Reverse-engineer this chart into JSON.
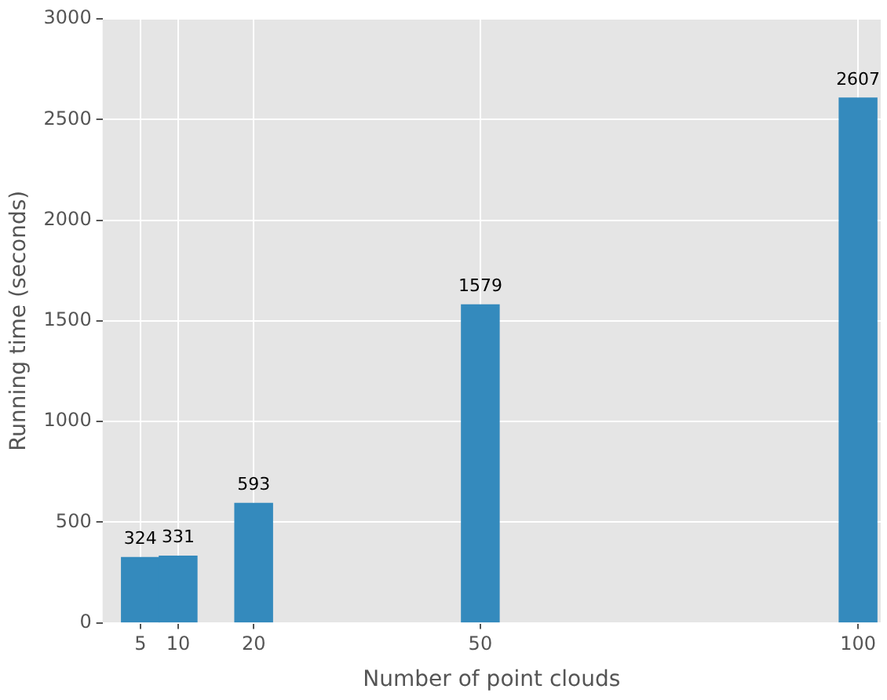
{
  "chart_data": {
    "type": "bar",
    "xlabel": "Number of point clouds",
    "ylabel": "Running time (seconds)",
    "x": [
      5,
      10,
      20,
      50,
      100
    ],
    "values": [
      324,
      331,
      593,
      1579,
      2607
    ],
    "color": "#348abd",
    "xlim": [
      0,
      103
    ],
    "xticks": [
      5,
      10,
      20,
      50,
      100
    ],
    "ylim": [
      0,
      3000
    ],
    "yticks": [
      0,
      500,
      1000,
      1500,
      2000,
      2500,
      3000
    ],
    "grid": true,
    "data_labels": true
  }
}
